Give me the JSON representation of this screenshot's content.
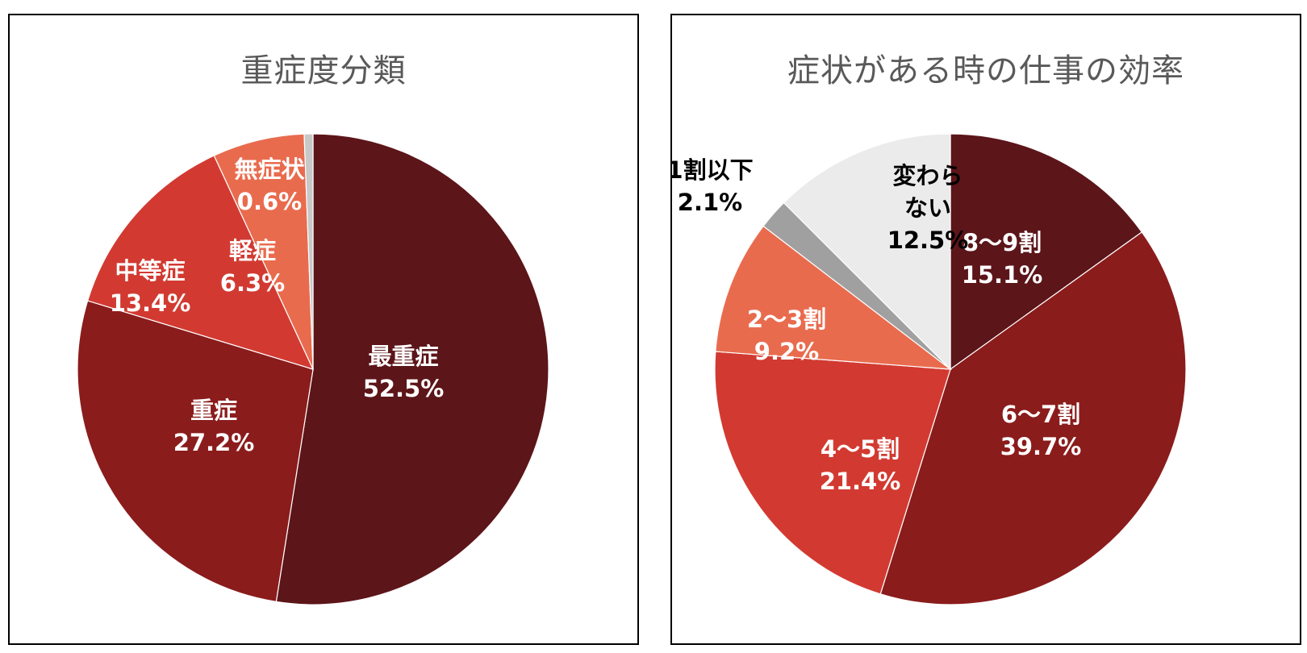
{
  "chart_data": [
    {
      "type": "pie",
      "title": "重症度分類",
      "start_angle_deg": 0,
      "direction": "clockwise",
      "slices": [
        {
          "label": "最重症",
          "value": 52.5,
          "value_label": "52.5%",
          "color": "#5c1519",
          "text_color": "#ffffff"
        },
        {
          "label": "重症",
          "value": 27.2,
          "value_label": "27.2%",
          "color": "#8b1c1c",
          "text_color": "#ffffff"
        },
        {
          "label": "中等症",
          "value": 13.4,
          "value_label": "13.4%",
          "color": "#d23a31",
          "text_color": "#ffffff"
        },
        {
          "label": "軽症",
          "value": 6.3,
          "value_label": "6.3%",
          "color": "#e96b4e",
          "text_color": "#ffffff"
        },
        {
          "label": "無症状",
          "value": 0.6,
          "value_label": "0.6%",
          "color": "#c8c8c8",
          "text_color": "#ffffff"
        }
      ]
    },
    {
      "type": "pie",
      "title": "症状がある時の仕事の効率",
      "start_angle_deg": 0,
      "direction": "clockwise",
      "slices": [
        {
          "label": "8〜9割",
          "value": 15.1,
          "value_label": "15.1%",
          "color": "#5c1519",
          "text_color": "#ffffff"
        },
        {
          "label": "6〜7割",
          "value": 39.7,
          "value_label": "39.7%",
          "color": "#8b1c1c",
          "text_color": "#ffffff"
        },
        {
          "label": "4〜5割",
          "value": 21.4,
          "value_label": "21.4%",
          "color": "#d23a31",
          "text_color": "#ffffff"
        },
        {
          "label": "2〜3割",
          "value": 9.2,
          "value_label": "9.2%",
          "color": "#e96b4e",
          "text_color": "#ffffff"
        },
        {
          "label": "1割以下",
          "value": 2.1,
          "value_label": "2.1%",
          "color": "#a0a0a0",
          "text_color": "#000000"
        },
        {
          "label": "変わらない",
          "label_lines": [
            "変わら",
            "ない"
          ],
          "value": 12.5,
          "value_label": "12.5%",
          "color": "#ebebeb",
          "text_color": "#000000"
        }
      ]
    }
  ]
}
